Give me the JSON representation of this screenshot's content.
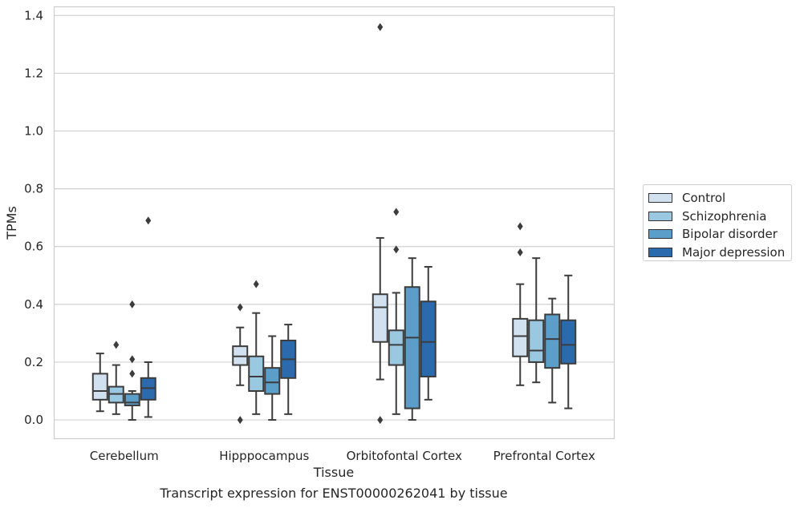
{
  "chart_data": {
    "type": "box",
    "categories": [
      "Cerebellum",
      "Hipppocampus",
      "Orbitofontal Cortex",
      "Prefrontal Cortex"
    ],
    "xlabel": "Tissue",
    "ylabel": "TPMs",
    "ylim": [
      -0.065,
      1.43
    ],
    "yticks": [
      "0.0",
      "0.2",
      "0.4",
      "0.6",
      "0.8",
      "1.0",
      "1.2",
      "1.4"
    ],
    "grid": "horizontal",
    "legend_position": "right",
    "series": [
      {
        "name": "Control",
        "color": "#d1e1f0",
        "boxes": [
          {
            "whisker_low": 0.03,
            "q1": 0.07,
            "median": 0.1,
            "q3": 0.16,
            "whisker_high": 0.23,
            "outliers": []
          },
          {
            "whisker_low": 0.12,
            "q1": 0.19,
            "median": 0.22,
            "q3": 0.255,
            "whisker_high": 0.32,
            "outliers": [
              0.0,
              0.39
            ]
          },
          {
            "whisker_low": 0.14,
            "q1": 0.27,
            "median": 0.39,
            "q3": 0.435,
            "whisker_high": 0.63,
            "outliers": [
              0.0,
              1.36
            ]
          },
          {
            "whisker_low": 0.12,
            "q1": 0.22,
            "median": 0.29,
            "q3": 0.35,
            "whisker_high": 0.47,
            "outliers": [
              0.58,
              0.67
            ]
          }
        ]
      },
      {
        "name": "Schizophrenia",
        "color": "#9ac8e0",
        "boxes": [
          {
            "whisker_low": 0.02,
            "q1": 0.06,
            "median": 0.09,
            "q3": 0.115,
            "whisker_high": 0.19,
            "outliers": [
              0.26
            ]
          },
          {
            "whisker_low": 0.02,
            "q1": 0.1,
            "median": 0.15,
            "q3": 0.22,
            "whisker_high": 0.37,
            "outliers": [
              0.47
            ]
          },
          {
            "whisker_low": 0.02,
            "q1": 0.19,
            "median": 0.26,
            "q3": 0.31,
            "whisker_high": 0.44,
            "outliers": [
              0.59,
              0.72
            ]
          },
          {
            "whisker_low": 0.13,
            "q1": 0.2,
            "median": 0.24,
            "q3": 0.345,
            "whisker_high": 0.56,
            "outliers": []
          }
        ]
      },
      {
        "name": "Bipolar disorder",
        "color": "#5a9ec9",
        "boxes": [
          {
            "whisker_low": 0.0,
            "q1": 0.05,
            "median": 0.06,
            "q3": 0.09,
            "whisker_high": 0.1,
            "outliers": [
              0.16,
              0.21,
              0.4
            ]
          },
          {
            "whisker_low": 0.0,
            "q1": 0.09,
            "median": 0.13,
            "q3": 0.18,
            "whisker_high": 0.29,
            "outliers": []
          },
          {
            "whisker_low": 0.0,
            "q1": 0.04,
            "median": 0.285,
            "q3": 0.46,
            "whisker_high": 0.56,
            "outliers": []
          },
          {
            "whisker_low": 0.06,
            "q1": 0.18,
            "median": 0.28,
            "q3": 0.365,
            "whisker_high": 0.42,
            "outliers": []
          }
        ]
      },
      {
        "name": "Major depression",
        "color": "#2a6aad",
        "boxes": [
          {
            "whisker_low": 0.01,
            "q1": 0.07,
            "median": 0.11,
            "q3": 0.145,
            "whisker_high": 0.2,
            "outliers": [
              0.69
            ]
          },
          {
            "whisker_low": 0.02,
            "q1": 0.145,
            "median": 0.21,
            "q3": 0.275,
            "whisker_high": 0.33,
            "outliers": []
          },
          {
            "whisker_low": 0.07,
            "q1": 0.15,
            "median": 0.27,
            "q3": 0.41,
            "whisker_high": 0.53,
            "outliers": []
          },
          {
            "whisker_low": 0.04,
            "q1": 0.195,
            "median": 0.26,
            "q3": 0.345,
            "whisker_high": 0.5,
            "outliers": []
          }
        ]
      }
    ]
  },
  "caption": "Transcript expression for ENST00000262041 by tissue"
}
